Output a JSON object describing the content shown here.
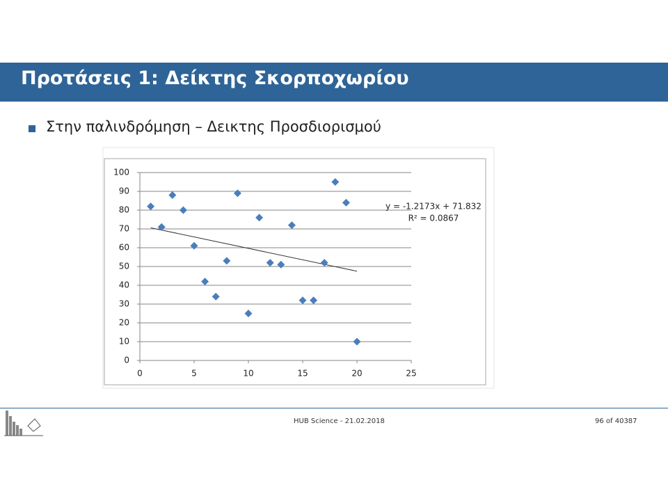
{
  "header": {
    "title": "Προτάσεις 1: Δείκτης Σκορποχωρίου"
  },
  "bullet": "Στην παλινδρόμηση – Δεικτης Προσδιορισμού",
  "chart_data": {
    "type": "scatter",
    "x": [
      1,
      2,
      3,
      4,
      5,
      6,
      7,
      8,
      9,
      10,
      11,
      12,
      13,
      14,
      15,
      16,
      17,
      18,
      19,
      20
    ],
    "values": [
      82,
      71,
      88,
      80,
      61,
      42,
      34,
      53,
      89,
      25,
      76,
      52,
      51,
      72,
      32,
      32,
      52,
      95,
      84,
      10
    ],
    "color": "#4a7ebb",
    "xlim": [
      0,
      25
    ],
    "xticks": [
      0,
      5,
      10,
      15,
      20,
      25
    ],
    "ylim": [
      0,
      100
    ],
    "yticks": [
      0,
      10,
      20,
      30,
      40,
      50,
      60,
      70,
      80,
      90,
      100
    ],
    "grid": true,
    "trendline": {
      "slope": -1.2173,
      "intercept": 71.832,
      "equation": "y = -1.2173x + 71.832",
      "r_squared": 0.0867,
      "r_squared_label": "R² = 0.0867"
    }
  },
  "footer": {
    "center": "HUB Science - 21.02.2018",
    "page": "96 of 40387"
  }
}
